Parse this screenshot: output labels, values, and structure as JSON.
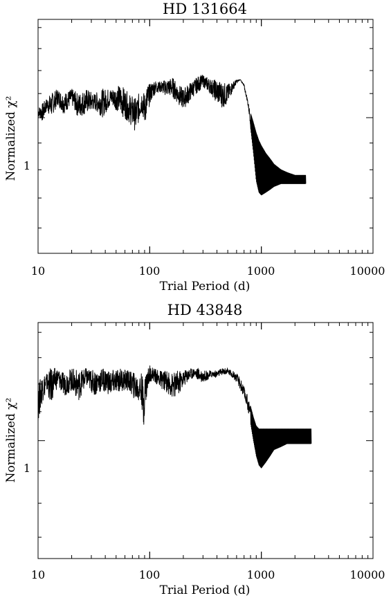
{
  "chart_data": [
    {
      "type": "line",
      "title": "HD 131664",
      "xlabel": "Trial Period (d)",
      "ylabel": "Normalized χ²",
      "xscale": "log",
      "yscale": "log",
      "xlim": [
        10,
        10000
      ],
      "ylim": [
        0.76,
        1.22
      ],
      "xticks": [
        "10",
        "100",
        "1000",
        "10000"
      ],
      "yticks": [
        "1"
      ],
      "grid": false,
      "series": [
        {
          "x": [
            10,
            11,
            12,
            13,
            15,
            17,
            20,
            23,
            27,
            32,
            38,
            45,
            55,
            65,
            75,
            85,
            90,
            95,
            100,
            110,
            120,
            140,
            160,
            180,
            200,
            220,
            250,
            280,
            300,
            330,
            360,
            400,
            450,
            500,
            550,
            600,
            650,
            700,
            750,
            800,
            850,
            900,
            950,
            1000,
            1100,
            1200,
            1300,
            1500,
            1700,
            2000,
            2200,
            2500
          ],
          "y_low": [
            1.0,
            0.985,
            1.01,
            0.99,
            1.02,
            1.0,
            1.02,
            0.99,
            1.0,
            1.01,
            0.99,
            1.02,
            0.995,
            0.98,
            0.96,
            1.0,
            0.975,
            0.99,
            1.02,
            1.04,
            1.05,
            1.04,
            1.035,
            1.02,
            1.01,
            1.02,
            1.04,
            1.05,
            1.06,
            1.05,
            1.04,
            1.02,
            1.01,
            1.02,
            1.05,
            1.07,
            1.08,
            1.06,
            1.03,
            0.98,
            0.93,
            0.88,
            0.86,
            0.855,
            0.86,
            0.865,
            0.87,
            0.875,
            0.875,
            0.875,
            0.875,
            0.875
          ],
          "y_high": [
            1.02,
            1.03,
            1.04,
            1.05,
            1.06,
            1.05,
            1.06,
            1.05,
            1.06,
            1.05,
            1.06,
            1.06,
            1.07,
            1.05,
            1.04,
            1.06,
            1.05,
            1.07,
            1.07,
            1.08,
            1.075,
            1.08,
            1.085,
            1.07,
            1.06,
            1.07,
            1.08,
            1.09,
            1.09,
            1.085,
            1.08,
            1.08,
            1.075,
            1.07,
            1.075,
            1.08,
            1.08,
            1.07,
            1.04,
            1.01,
            0.99,
            0.97,
            0.955,
            0.945,
            0.93,
            0.92,
            0.91,
            0.9,
            0.895,
            0.89,
            0.89,
            0.89
          ]
        }
      ]
    },
    {
      "type": "line",
      "title": "HD 43848",
      "xlabel": "Trial Period (d)",
      "ylabel": "Normalized χ²",
      "xscale": "log",
      "yscale": "log",
      "xlim": [
        10,
        10000
      ],
      "ylim": [
        0.82,
        1.22
      ],
      "xticks": [
        "10",
        "100",
        "1000",
        "10000"
      ],
      "yticks": [
        "1"
      ],
      "grid": false,
      "series": [
        {
          "x": [
            10,
            11,
            12,
            13,
            15,
            17,
            20,
            23,
            27,
            32,
            38,
            45,
            55,
            65,
            75,
            85,
            88,
            90,
            95,
            100,
            110,
            120,
            140,
            160,
            180,
            200,
            220,
            250,
            280,
            300,
            330,
            360,
            400,
            450,
            500,
            550,
            600,
            650,
            700,
            750,
            800,
            850,
            900,
            950,
            1000,
            1100,
            1200,
            1300,
            1500,
            1700,
            2000,
            2200,
            2500,
            2800
          ],
          "y_low": [
            1.02,
            1.06,
            1.08,
            1.05,
            1.09,
            1.07,
            1.08,
            1.06,
            1.09,
            1.07,
            1.08,
            1.07,
            1.08,
            1.08,
            1.06,
            1.05,
            0.995,
            1.04,
            1.07,
            1.1,
            1.1,
            1.09,
            1.08,
            1.065,
            1.07,
            1.09,
            1.1,
            1.11,
            1.1,
            1.1,
            1.105,
            1.11,
            1.11,
            1.115,
            1.115,
            1.11,
            1.1,
            1.085,
            1.07,
            1.05,
            1.03,
            1.0,
            0.975,
            0.96,
            0.955,
            0.965,
            0.975,
            0.985,
            0.99,
            0.995,
            0.995,
            0.995,
            0.995,
            0.995
          ],
          "y_high": [
            1.1,
            1.12,
            1.12,
            1.13,
            1.13,
            1.12,
            1.13,
            1.125,
            1.13,
            1.125,
            1.13,
            1.125,
            1.13,
            1.125,
            1.12,
            1.12,
            1.1,
            1.12,
            1.13,
            1.135,
            1.13,
            1.125,
            1.125,
            1.12,
            1.125,
            1.125,
            1.13,
            1.13,
            1.13,
            1.125,
            1.125,
            1.125,
            1.125,
            1.13,
            1.13,
            1.125,
            1.12,
            1.11,
            1.095,
            1.08,
            1.06,
            1.04,
            1.025,
            1.02,
            1.02,
            1.02,
            1.02,
            1.02,
            1.02,
            1.02,
            1.02,
            1.02,
            1.02,
            1.02
          ]
        }
      ]
    }
  ]
}
